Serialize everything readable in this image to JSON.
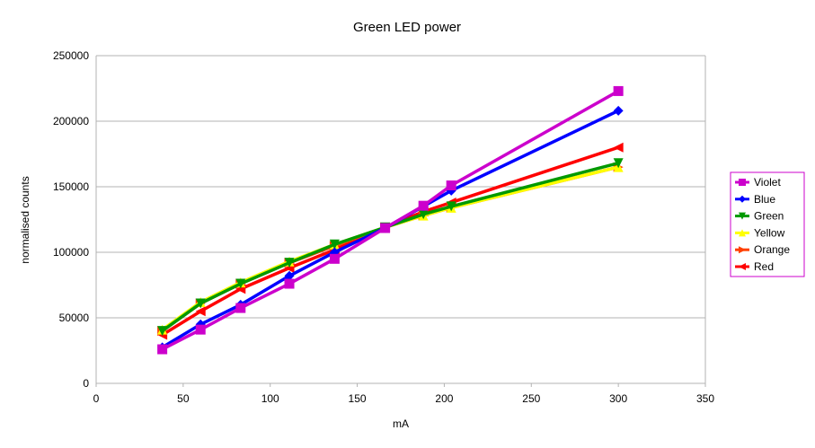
{
  "chart_data": {
    "type": "line",
    "title": "Green LED power",
    "xlabel": "mA",
    "ylabel": "normalised counts",
    "xlim": [
      0,
      350
    ],
    "ylim": [
      0,
      250000
    ],
    "xticks": [
      0,
      50,
      100,
      150,
      200,
      250,
      300,
      350
    ],
    "yticks": [
      0,
      50000,
      100000,
      150000,
      200000,
      250000
    ],
    "grid": "horizontal",
    "legend_position": "right",
    "x": [
      38,
      60,
      83,
      111,
      137,
      166,
      188,
      204,
      300
    ],
    "series": [
      {
        "name": "Violet",
        "color": "#cc00cc",
        "marker": "square",
        "values": [
          26000,
          41000,
          57500,
          76000,
          95000,
          118500,
          135500,
          151000,
          223000
        ]
      },
      {
        "name": "Blue",
        "color": "#0000ff",
        "marker": "diamond",
        "values": [
          27500,
          45000,
          60000,
          82000,
          100000,
          118500,
          135000,
          147000,
          208000
        ]
      },
      {
        "name": "Green",
        "color": "#009900",
        "marker": "triangle-down",
        "values": [
          40000,
          61000,
          76000,
          92000,
          106000,
          119000,
          129000,
          135000,
          168000
        ]
      },
      {
        "name": "Yellow",
        "color": "#ffff00",
        "marker": "triangle-up",
        "values": [
          41000,
          62000,
          77000,
          93000,
          106000,
          119000,
          128000,
          134000,
          165000
        ]
      },
      {
        "name": "Orange",
        "color": "#ff4000",
        "marker": "triangle-right",
        "values": [
          40000,
          61000,
          76000,
          92000,
          105000,
          119000,
          128000,
          134000,
          165000
        ]
      },
      {
        "name": "Red",
        "color": "#ff0000",
        "marker": "triangle-left",
        "values": [
          37000,
          55000,
          72000,
          88000,
          102000,
          119000,
          131000,
          138000,
          180000
        ]
      }
    ]
  }
}
